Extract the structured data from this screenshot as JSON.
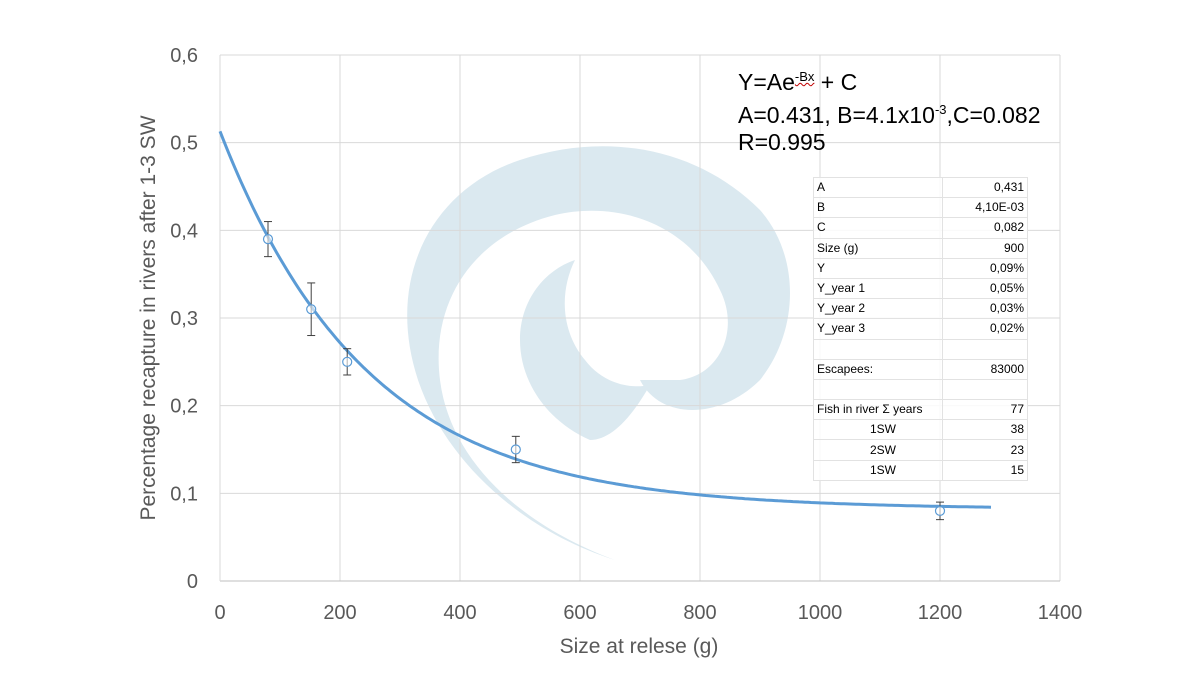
{
  "chart_data": {
    "type": "scatter",
    "title": "",
    "xlabel": "Size at relese (g)",
    "ylabel": "Percentage  recapture in rivers after 1-3 SW",
    "xlim": [
      0,
      1400
    ],
    "ylim": [
      0,
      0.6
    ],
    "x_ticks": [
      "0",
      "200",
      "400",
      "600",
      "800",
      "1000",
      "1200",
      "1400"
    ],
    "y_ticks": [
      "0",
      "0,1",
      "0,2",
      "0,3",
      "0,4",
      "0,5",
      "0,6"
    ],
    "grid": true,
    "legend": "none",
    "series": [
      {
        "type": "scatter",
        "marker": "open-circle",
        "points": [
          {
            "x": 80,
            "y": 0.39,
            "err_low": 0.37,
            "err_high": 0.41
          },
          {
            "x": 152,
            "y": 0.31,
            "err_low": 0.28,
            "err_high": 0.34
          },
          {
            "x": 212,
            "y": 0.25,
            "err_low": 0.235,
            "err_high": 0.265
          },
          {
            "x": 493,
            "y": 0.15,
            "err_low": 0.135,
            "err_high": 0.165
          },
          {
            "x": 1200,
            "y": 0.08,
            "err_low": 0.07,
            "err_high": 0.09
          }
        ]
      },
      {
        "type": "line",
        "model": "Y=Ae^(-Bx)+C",
        "params": {
          "A": 0.431,
          "B": 0.0041,
          "C": 0.082
        },
        "x_range": [
          0,
          1285
        ]
      }
    ],
    "annotations": {
      "eq_line1_prefix": "Y=Ae",
      "eq_line1_sup": "-Bx",
      "eq_line1_suffix": " + C",
      "eq_line2_a": "A=0.431, B=4.1x10",
      "eq_line2_sup": "-3",
      "eq_line2_b": ",C=0.082",
      "eq_line3": "R=0.995"
    }
  },
  "table": {
    "rows": [
      {
        "label": "A",
        "value": "0,431",
        "indent": false
      },
      {
        "label": "B",
        "value": "4,10E-03",
        "indent": false
      },
      {
        "label": "C",
        "value": "0,082",
        "indent": false
      },
      {
        "label": "Size (g)",
        "value": "900",
        "indent": false
      },
      {
        "label": "Y",
        "value": "0,09%",
        "indent": false
      },
      {
        "label": "Y_year 1",
        "value": "0,05%",
        "indent": false
      },
      {
        "label": "Y_year 2",
        "value": "0,03%",
        "indent": false
      },
      {
        "label": "Y_year 3",
        "value": "0,02%",
        "indent": false
      },
      {
        "label": "",
        "value": "",
        "indent": false
      },
      {
        "label": "Escapees:",
        "value": "83000",
        "indent": false
      },
      {
        "label": "",
        "value": "",
        "indent": false
      },
      {
        "label": "Fish in river Σ years",
        "value": "77",
        "indent": false
      },
      {
        "label": "1SW",
        "value": "38",
        "indent": true
      },
      {
        "label": "2SW",
        "value": "23",
        "indent": true
      },
      {
        "label": "1SW",
        "value": "15",
        "indent": true
      }
    ]
  },
  "colors": {
    "curve": "#5b9bd5",
    "marker": "#5b9bd5",
    "errorbar": "#404040",
    "grid": "#d9d9d9",
    "watermark": "#dbe9f0"
  },
  "watermark_icon": "swirl-logo-icon"
}
